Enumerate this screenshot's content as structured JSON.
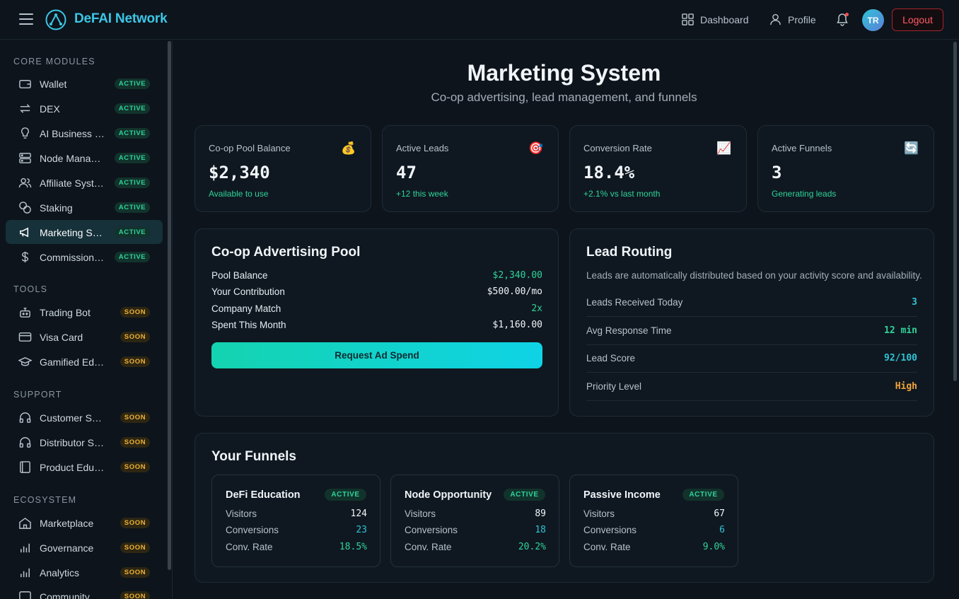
{
  "header": {
    "brand": "DeFAI Network",
    "nav": [
      {
        "label": "Dashboard",
        "icon": "grid-icon"
      },
      {
        "label": "Profile",
        "icon": "user-icon"
      }
    ],
    "avatar_initials": "TR",
    "logout_label": "Logout"
  },
  "sidebar": {
    "sections": [
      {
        "title": "CORE MODULES",
        "items": [
          {
            "label": "Wallet",
            "badge": "ACTIVE",
            "icon": "wallet-icon"
          },
          {
            "label": "DEX",
            "badge": "ACTIVE",
            "icon": "swap-icon"
          },
          {
            "label": "AI Business Partner",
            "badge": "ACTIVE",
            "icon": "lightbulb-icon"
          },
          {
            "label": "Node Management",
            "badge": "ACTIVE",
            "icon": "server-icon"
          },
          {
            "label": "Affiliate System",
            "badge": "ACTIVE",
            "icon": "users-icon"
          },
          {
            "label": "Staking",
            "badge": "ACTIVE",
            "icon": "coins-icon"
          },
          {
            "label": "Marketing System",
            "badge": "ACTIVE",
            "icon": "megaphone-icon"
          },
          {
            "label": "Commission System",
            "badge": "ACTIVE",
            "icon": "dollar-icon"
          }
        ]
      },
      {
        "title": "TOOLS",
        "items": [
          {
            "label": "Trading Bot",
            "badge": "SOON",
            "icon": "bot-icon"
          },
          {
            "label": "Visa Card",
            "badge": "SOON",
            "icon": "card-icon"
          },
          {
            "label": "Gamified Education",
            "badge": "SOON",
            "icon": "graduation-cap-icon"
          }
        ]
      },
      {
        "title": "SUPPORT",
        "items": [
          {
            "label": "Customer Support",
            "badge": "SOON",
            "icon": "headphones-icon"
          },
          {
            "label": "Distributor Support",
            "badge": "SOON",
            "icon": "headphones-icon"
          },
          {
            "label": "Product Education",
            "badge": "SOON",
            "icon": "book-icon"
          }
        ]
      },
      {
        "title": "ECOSYSTEM",
        "items": [
          {
            "label": "Marketplace",
            "badge": "SOON",
            "icon": "store-icon"
          },
          {
            "label": "Governance",
            "badge": "SOON",
            "icon": "bar-chart-icon"
          },
          {
            "label": "Analytics",
            "badge": "SOON",
            "icon": "bar-chart-icon"
          },
          {
            "label": "Community",
            "badge": "SOON",
            "icon": "chat-icon"
          }
        ]
      }
    ]
  },
  "page": {
    "title": "Marketing System",
    "subtitle": "Co-op advertising, lead management, and funnels"
  },
  "stats": [
    {
      "title": "Co-op Pool Balance",
      "value": "$2,340",
      "note": "Available to use",
      "emoji": "💰"
    },
    {
      "title": "Active Leads",
      "value": "47",
      "note": "+12 this week",
      "emoji": "🎯"
    },
    {
      "title": "Conversion Rate",
      "value": "18.4%",
      "note": "+2.1% vs last month",
      "emoji": "📈"
    },
    {
      "title": "Active Funnels",
      "value": "3",
      "note": "Generating leads",
      "emoji": "🔄"
    }
  ],
  "coop": {
    "title": "Co-op Advertising Pool",
    "rows": [
      {
        "label": "Pool Balance",
        "value": "$2,340.00",
        "color": "#2fd39a"
      },
      {
        "label": "Your Contribution",
        "value": "$500.00/mo",
        "color": "#f1f5f9"
      },
      {
        "label": "Company Match",
        "value": "2x",
        "color": "#2fd39a"
      },
      {
        "label": "Spent This Month",
        "value": "$1,160.00",
        "color": "#f1f5f9"
      }
    ],
    "button": "Request Ad Spend"
  },
  "routing": {
    "title": "Lead Routing",
    "desc": "Leads are automatically distributed based on your activity score and availability.",
    "rows": [
      {
        "label": "Leads Received Today",
        "value": "3",
        "color": "#2fc3d6"
      },
      {
        "label": "Avg Response Time",
        "value": "12 min",
        "color": "#2fd39a"
      },
      {
        "label": "Lead Score",
        "value": "92/100",
        "color": "#2fc3d6"
      },
      {
        "label": "Priority Level",
        "value": "High",
        "color": "#f0a43c"
      }
    ]
  },
  "funnels": {
    "title": "Your Funnels",
    "items": [
      {
        "name": "DeFi Education",
        "badge": "ACTIVE",
        "visitors_label": "Visitors",
        "visitors": "124",
        "conversions_label": "Conversions",
        "conversions": "23",
        "rate_label": "Conv. Rate",
        "rate": "18.5%"
      },
      {
        "name": "Node Opportunity",
        "badge": "ACTIVE",
        "visitors_label": "Visitors",
        "visitors": "89",
        "conversions_label": "Conversions",
        "conversions": "18",
        "rate_label": "Conv. Rate",
        "rate": "20.2%"
      },
      {
        "name": "Passive Income",
        "badge": "ACTIVE",
        "visitors_label": "Visitors",
        "visitors": "67",
        "conversions_label": "Conversions",
        "conversions": "6",
        "rate_label": "Conv. Rate",
        "rate": "9.0%"
      }
    ]
  },
  "colors": {
    "accent": "#3cc6e6",
    "success": "#2fd39a",
    "warning": "#f0b232",
    "danger": "#ff5a64"
  }
}
